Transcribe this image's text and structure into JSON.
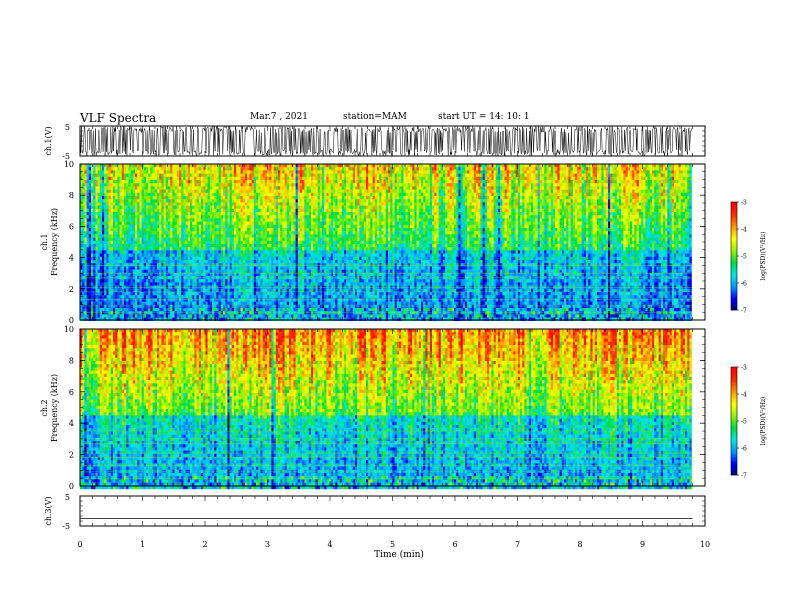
{
  "header": {
    "title": "VLF Spectra",
    "date": "Mar.7 , 2021",
    "station": "station=MAM",
    "start": "start UT = 14: 10: 1"
  },
  "chart_data": [
    {
      "type": "line",
      "panel": "ch1-waveform",
      "ylabel": "ch.1(V)",
      "ylim": [
        -5,
        5
      ],
      "yticks": [
        "5",
        "-5"
      ],
      "xlim": [
        0,
        9.8
      ],
      "note": "dense black oscillating waveform filling the full range"
    },
    {
      "type": "heatmap",
      "panel": "ch1-spectrogram",
      "ylabel": "ch.1 Frequency (kHz)",
      "ylim": [
        0,
        10
      ],
      "yticks": [
        "0",
        "2",
        "4",
        "6",
        "8",
        "10"
      ],
      "xlim": [
        0,
        9.8
      ],
      "colorbar": {
        "label": "log(PSD)(V²/Hz)",
        "range": [
          -7,
          -3
        ],
        "ticks": [
          "-3",
          "-4",
          "-5",
          "-6",
          "-7"
        ]
      },
      "description_levels": {
        "low_freq": -6.2,
        "mid_freq": -5.3,
        "high_freq": -4.2
      }
    },
    {
      "type": "heatmap",
      "panel": "ch2-spectrogram",
      "ylabel": "ch.2 Frequency (kHz)",
      "ylim": [
        0,
        10
      ],
      "yticks": [
        "0",
        "2",
        "4",
        "6",
        "8",
        "10"
      ],
      "xlim": [
        0,
        9.8
      ],
      "colorbar": {
        "label": "log(PSD)(V²/Hz)",
        "range": [
          -7,
          -3
        ],
        "ticks": [
          "-3",
          "-4",
          "-5",
          "-6",
          "-7"
        ]
      },
      "description_levels": {
        "low_freq": -6.1,
        "mid_freq": -5.0,
        "high_freq": -3.8
      }
    },
    {
      "type": "line",
      "panel": "ch3-waveform",
      "ylabel": "ch.3(V)",
      "ylim": [
        -5,
        5
      ],
      "yticks": [
        "5",
        "-5"
      ],
      "x": [
        0,
        9.8
      ],
      "y": [
        -2.5,
        -2.5
      ]
    }
  ],
  "x_axis": {
    "label": "Time (min)",
    "range": [
      0,
      10
    ],
    "ticks": [
      "0",
      "1",
      "2",
      "3",
      "4",
      "5",
      "6",
      "7",
      "8",
      "9",
      "10"
    ]
  },
  "colors": {
    "colormap": [
      "#00006e",
      "#0000ff",
      "#0096ff",
      "#00e6e6",
      "#00dc3c",
      "#96f000",
      "#ffff00",
      "#ff9600",
      "#ff2800",
      "#ff0000",
      "#ffffff"
    ]
  }
}
